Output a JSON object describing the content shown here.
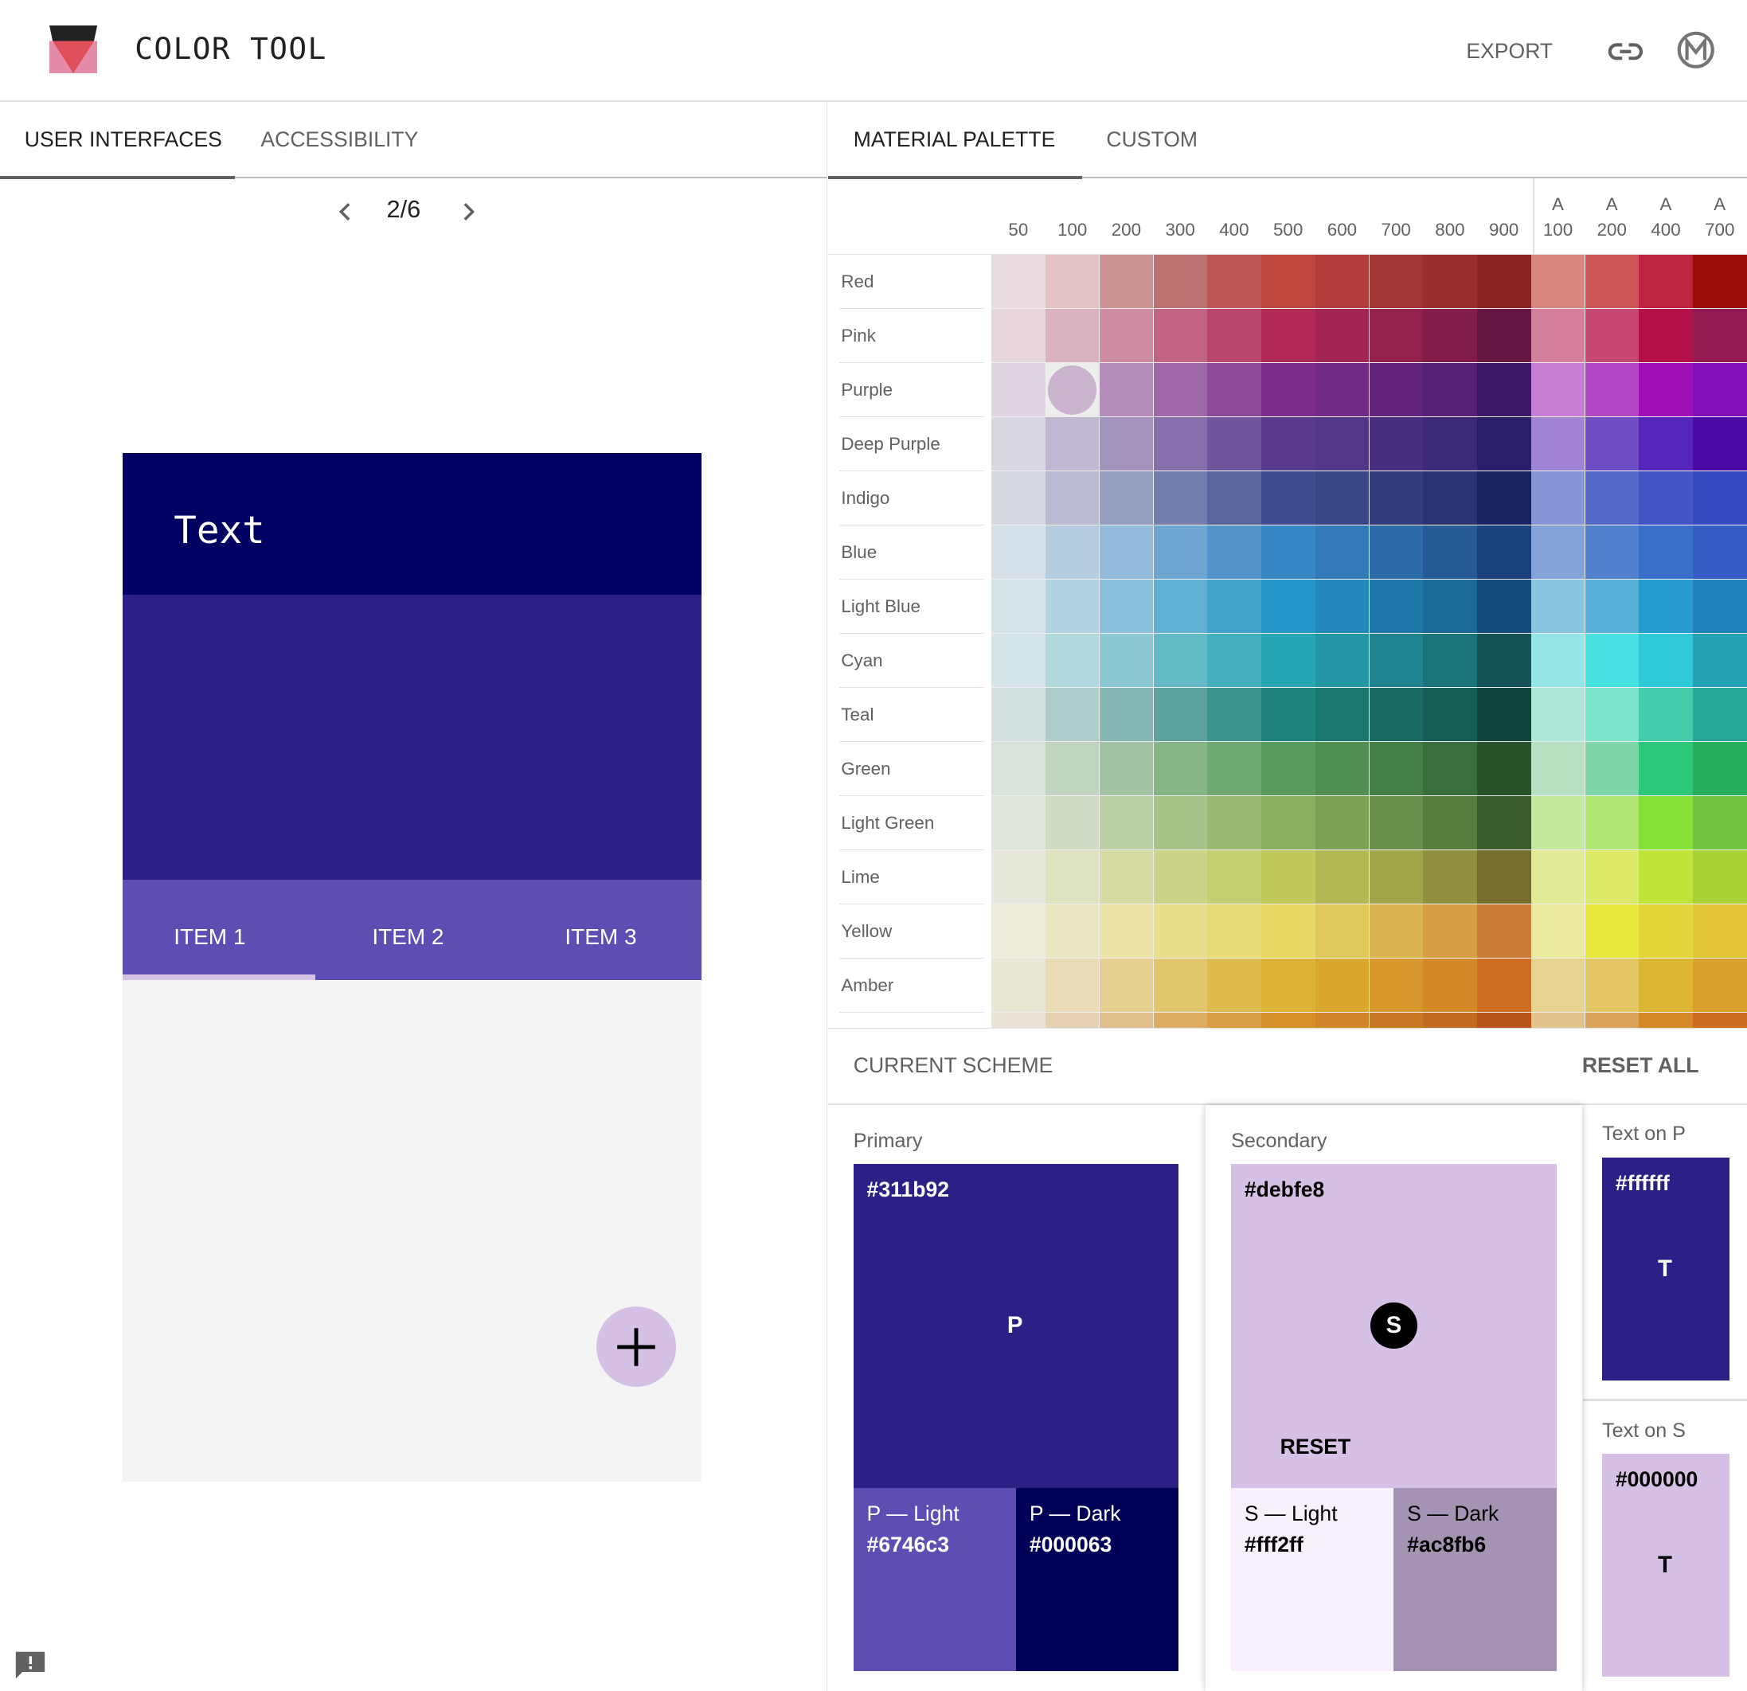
{
  "header": {
    "title": "COLOR TOOL",
    "export_label": "EXPORT",
    "icons": [
      "color-tool-logo",
      "link-icon",
      "material-logo-icon"
    ]
  },
  "left_tabs": [
    {
      "label": "USER INTERFACES",
      "active": true
    },
    {
      "label": "ACCESSIBILITY",
      "active": false
    }
  ],
  "pager": {
    "text": "2/6"
  },
  "preview": {
    "appbar_text": "Text",
    "tabs": [
      "ITEM 1",
      "ITEM 2",
      "ITEM 3"
    ],
    "selected_tab": 0,
    "fab_icon": "plus-icon"
  },
  "right_tabs": [
    {
      "label": "MATERIAL PALETTE",
      "active": true
    },
    {
      "label": "CUSTOM",
      "active": false
    }
  ],
  "palette": {
    "columns": [
      {
        "top": "",
        "bottom": "50"
      },
      {
        "top": "",
        "bottom": "100"
      },
      {
        "top": "",
        "bottom": "200"
      },
      {
        "top": "",
        "bottom": "300"
      },
      {
        "top": "",
        "bottom": "400"
      },
      {
        "top": "",
        "bottom": "500"
      },
      {
        "top": "",
        "bottom": "600"
      },
      {
        "top": "",
        "bottom": "700"
      },
      {
        "top": "",
        "bottom": "800"
      },
      {
        "top": "",
        "bottom": "900"
      },
      {
        "top": "A",
        "bottom": "100"
      },
      {
        "top": "A",
        "bottom": "200"
      },
      {
        "top": "A",
        "bottom": "400"
      },
      {
        "top": "A",
        "bottom": "700"
      }
    ],
    "selected": {
      "row": "Purple",
      "column": "100"
    },
    "rows": [
      {
        "name": "Red",
        "colors": [
          "#ffebee",
          "#ffcdd2",
          "#ef9a9a",
          "#e57373",
          "#ef5350",
          "#f44336",
          "#e53935",
          "#d32f2f",
          "#c62828",
          "#b71c1c",
          "#ff8a80",
          "#ff5252",
          "#ff1744",
          "#d50000"
        ]
      },
      {
        "name": "Pink",
        "colors": [
          "#fce4ec",
          "#f8bbd0",
          "#f48fb1",
          "#f06292",
          "#ec407a",
          "#e91e63",
          "#d81b60",
          "#c2185b",
          "#ad1457",
          "#880e4f",
          "#ff80ab",
          "#ff4081",
          "#f50057",
          "#c51162"
        ]
      },
      {
        "name": "Purple",
        "colors": [
          "#f3e5f5",
          "#e1bee7",
          "#ce93d8",
          "#ba68c8",
          "#ab47bc",
          "#9c27b0",
          "#8e24aa",
          "#7b1fa2",
          "#6a1b9a",
          "#4a148c",
          "#ea80fc",
          "#e040fb",
          "#d500f9",
          "#aa00ff"
        ]
      },
      {
        "name": "Deep Purple",
        "colors": [
          "#ede7f6",
          "#d1c4e9",
          "#b39ddb",
          "#9575cd",
          "#7e57c2",
          "#673ab7",
          "#5e35b1",
          "#512da8",
          "#4527a0",
          "#311b92",
          "#b388ff",
          "#7c4dff",
          "#651fff",
          "#6200ea"
        ]
      },
      {
        "name": "Indigo",
        "colors": [
          "#e8eaf6",
          "#c5cae9",
          "#9fa8da",
          "#7986cb",
          "#5c6bc0",
          "#3f51b5",
          "#3949ab",
          "#303f9f",
          "#283593",
          "#1a237e",
          "#8c9eff",
          "#536dfe",
          "#3d5afe",
          "#304ffe"
        ]
      },
      {
        "name": "Blue",
        "colors": [
          "#e3f2fd",
          "#bbdefb",
          "#90caf9",
          "#64b5f6",
          "#42a5f5",
          "#2196f3",
          "#1e88e5",
          "#1976d2",
          "#1565c0",
          "#0d47a1",
          "#82b1ff",
          "#448aff",
          "#2979ff",
          "#2962ff"
        ]
      },
      {
        "name": "Light Blue",
        "colors": [
          "#e1f5fe",
          "#b3e5fc",
          "#81d4fa",
          "#4fc3f7",
          "#29b6f6",
          "#03a9f4",
          "#039be5",
          "#0288d1",
          "#0277bd",
          "#01579b",
          "#80d8ff",
          "#40c4ff",
          "#00b0ff",
          "#0091ea"
        ]
      },
      {
        "name": "Cyan",
        "colors": [
          "#e0f7fa",
          "#b2ebf2",
          "#80deea",
          "#4dd0e1",
          "#26c6da",
          "#00bcd4",
          "#00acc1",
          "#0097a7",
          "#00838f",
          "#006064",
          "#84ffff",
          "#18ffff",
          "#00e5ff",
          "#00b8d4"
        ]
      },
      {
        "name": "Teal",
        "colors": [
          "#e0f2f1",
          "#b2dfdb",
          "#80cbc4",
          "#4db6ac",
          "#26a69a",
          "#009688",
          "#00897b",
          "#00796b",
          "#00695c",
          "#004d40",
          "#a7ffeb",
          "#64ffda",
          "#1de9b6",
          "#00bfa5"
        ]
      },
      {
        "name": "Green",
        "colors": [
          "#e8f5e9",
          "#c8e6c9",
          "#a5d6a7",
          "#81c784",
          "#66bb6a",
          "#4caf50",
          "#43a047",
          "#388e3c",
          "#2e7d32",
          "#1b5e20",
          "#b9f6ca",
          "#69f0ae",
          "#00e676",
          "#00c853"
        ]
      },
      {
        "name": "Light Green",
        "colors": [
          "#f1f8e9",
          "#dcedc8",
          "#c5e1a5",
          "#aed581",
          "#9ccc65",
          "#8bc34a",
          "#7cb342",
          "#689f38",
          "#558b2f",
          "#33691e",
          "#ccff90",
          "#b2ff59",
          "#76ff03",
          "#64dd17"
        ]
      },
      {
        "name": "Lime",
        "colors": [
          "#f9fbe7",
          "#f0f4c3",
          "#e6ee9c",
          "#dce775",
          "#d4e157",
          "#cddc39",
          "#c0ca33",
          "#afb42b",
          "#9e9d24",
          "#827717",
          "#f4ff81",
          "#eeff41",
          "#c6ff00",
          "#aeea00"
        ]
      },
      {
        "name": "Yellow",
        "colors": [
          "#fffde7",
          "#fff9c4",
          "#fff59d",
          "#fff176",
          "#ffee58",
          "#ffeb3b",
          "#fdd835",
          "#fbc02d",
          "#f9a825",
          "#f57f17",
          "#ffff8d",
          "#ffff00",
          "#ffea00",
          "#ffd600"
        ]
      },
      {
        "name": "Amber",
        "colors": [
          "#fff8e1",
          "#ffecb3",
          "#ffe082",
          "#ffd54f",
          "#ffca28",
          "#ffc107",
          "#ffb300",
          "#ffa000",
          "#ff8f00",
          "#ff6f00",
          "#ffe57f",
          "#ffd740",
          "#ffc400",
          "#ffab00"
        ]
      },
      {
        "name": "",
        "colors": [
          "#fff3e0",
          "#ffe0b2",
          "#ffcc80",
          "#ffb74d",
          "#ffa726",
          "#ff9800",
          "#fb8c00",
          "#f57c00",
          "#ef6c00",
          "#e65100",
          "#ffd180",
          "#ffab40",
          "#ff9100",
          "#ff6d00"
        ]
      }
    ]
  },
  "scheme": {
    "title": "CURRENT SCHEME",
    "reset_all": "RESET ALL",
    "primary": {
      "label": "Primary",
      "hex": "#311b92",
      "letter": "P",
      "light_label": "P — Light",
      "light_hex": "#6746c3",
      "dark_label": "P — Dark",
      "dark_hex": "#000063"
    },
    "secondary": {
      "label": "Secondary",
      "hex": "#debfe8",
      "letter": "S",
      "reset": "RESET",
      "light_label": "S — Light",
      "light_hex": "#fff2ff",
      "dark_label": "S — Dark",
      "dark_hex": "#ac8fb6"
    },
    "text_on_p": {
      "label": "Text on P",
      "hex": "#ffffff",
      "letter": "T"
    },
    "text_on_s": {
      "label": "Text on S",
      "hex": "#000000",
      "letter": "T"
    }
  }
}
